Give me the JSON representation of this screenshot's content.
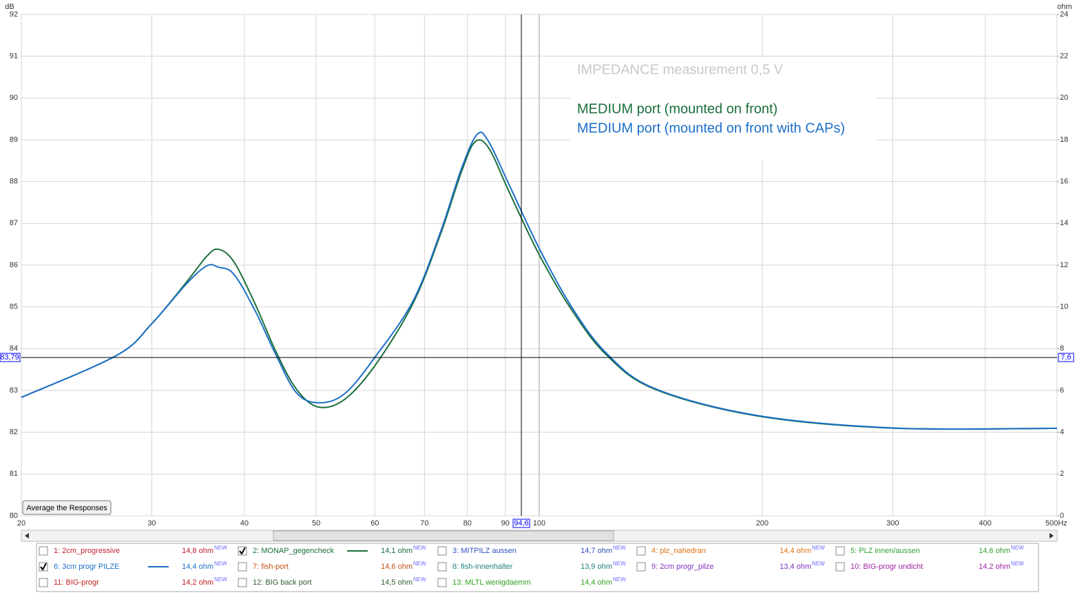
{
  "chart_data": {
    "type": "line",
    "xlabel_unit": "Hz",
    "ylabel": "dB",
    "y2label": "ohm",
    "annotation": "IMPEDANCE measurement 0,5 V",
    "xscale": "log",
    "grid": true,
    "xlim": [
      20,
      500
    ],
    "xticks": [
      20,
      30,
      40,
      50,
      60,
      70,
      80,
      90,
      100,
      200,
      300,
      400,
      {
        "value": 500,
        "label": "500Hz"
      }
    ],
    "ylim": [
      80,
      92
    ],
    "yticks": [
      80,
      81,
      82,
      83,
      84,
      85,
      86,
      87,
      88,
      89,
      90,
      91,
      92
    ],
    "y2lim": [
      0,
      24
    ],
    "y2ticks": [
      0,
      2,
      4,
      6,
      8,
      10,
      12,
      14,
      16,
      18,
      20,
      22,
      24
    ],
    "cursor": {
      "x": {
        "value": 94.6,
        "label": "94,6"
      },
      "y": {
        "value": 83.79,
        "label": "83,79"
      },
      "y2": {
        "value": 7.6,
        "label": "7,6"
      }
    },
    "series": [
      {
        "name": "MEDIUM port (mounted on front)",
        "color": "#1a6e3a",
        "axis": "y2",
        "x": [
          20,
          26.9,
          30.0,
          33.4,
          35.6,
          36.9,
          38.7,
          41.3,
          44.1,
          47.0,
          50.3,
          54.6,
          60.1,
          67.6,
          73.6,
          78.5,
          81.9,
          85.5,
          91.2,
          100,
          110.6,
          123.1,
          143,
          197,
          303,
          500
        ],
        "values": [
          5.67,
          7.68,
          9.2,
          11.18,
          12.43,
          12.76,
          12.17,
          10.19,
          7.88,
          6.07,
          5.21,
          5.57,
          7.22,
          10.19,
          13.49,
          16.45,
          17.9,
          17.6,
          15.46,
          12.5,
          9.86,
          7.72,
          6.07,
          4.78,
          4.19,
          4.19
        ]
      },
      {
        "name": "MEDIUM port (mounted on front with CAPs)",
        "color": "#1a6ec8",
        "axis": "y2",
        "x": [
          20,
          26.9,
          30.0,
          33.4,
          35.6,
          36.9,
          38.7,
          41.3,
          44.1,
          47.0,
          50.3,
          54.6,
          60.1,
          67.6,
          73.6,
          78.5,
          82.5,
          85.5,
          91.2,
          100,
          110.6,
          123.1,
          143,
          197,
          303,
          500
        ],
        "values": [
          5.67,
          7.68,
          9.2,
          11.1,
          11.97,
          11.9,
          11.57,
          9.86,
          7.72,
          5.9,
          5.41,
          5.84,
          7.62,
          10.3,
          13.6,
          16.6,
          18.27,
          17.9,
          15.8,
          12.8,
          10.0,
          7.8,
          6.1,
          4.8,
          4.2,
          4.19
        ]
      }
    ]
  },
  "button": "Average the Responses",
  "measurements": [
    {
      "name": "1: 2cm_progressive",
      "value": "14,8 ohm",
      "tag": "NEW",
      "checked": false,
      "color": "#c0202a"
    },
    {
      "name": "2: MONAP_gegencheck",
      "value": "14,1 ohm",
      "tag": "NEW",
      "checked": true,
      "color": "#1a6e3a"
    },
    {
      "name": "3: MITPILZ aussen",
      "value": "14,7 ohm",
      "tag": "NEW",
      "checked": false,
      "color": "#3050c0"
    },
    {
      "name": "4: plz_nahedran",
      "value": "14,4 ohm",
      "tag": "NEW",
      "checked": false,
      "color": "#e07010"
    },
    {
      "name": "5: PLZ innen/aussen",
      "value": "14,6 ohm",
      "tag": "NEW",
      "checked": false,
      "color": "#30a030"
    },
    {
      "name": "6: 3cm progr PILZE",
      "value": "14,4 ohm",
      "tag": "NEW",
      "checked": true,
      "color": "#1a6ec8"
    },
    {
      "name": "7: fish-port",
      "value": "14,6 ohm",
      "tag": "NEW",
      "checked": false,
      "color": "#c05010"
    },
    {
      "name": "8: fish-innenhalter",
      "value": "13,9 ohm",
      "tag": "NEW",
      "checked": false,
      "color": "#208080"
    },
    {
      "name": "9: 2cm progr_pilze",
      "value": "13,4 ohm",
      "tag": "NEW",
      "checked": false,
      "color": "#8030c0"
    },
    {
      "name": "10: BIG-progr undicht",
      "value": "14,2 ohm",
      "tag": "NEW",
      "checked": false,
      "color": "#a020a0"
    },
    {
      "name": "11: BIG-progr",
      "value": "14,2 ohm",
      "tag": "NEW",
      "checked": false,
      "color": "#c02020"
    },
    {
      "name": "12: BIG back port",
      "value": "14,5 ohm",
      "tag": "NEW",
      "checked": false,
      "color": "#306030"
    },
    {
      "name": "13: MLTL wenigdaemm",
      "value": "14,4 ohm",
      "tag": "NEW",
      "checked": false,
      "color": "#30a020"
    }
  ]
}
